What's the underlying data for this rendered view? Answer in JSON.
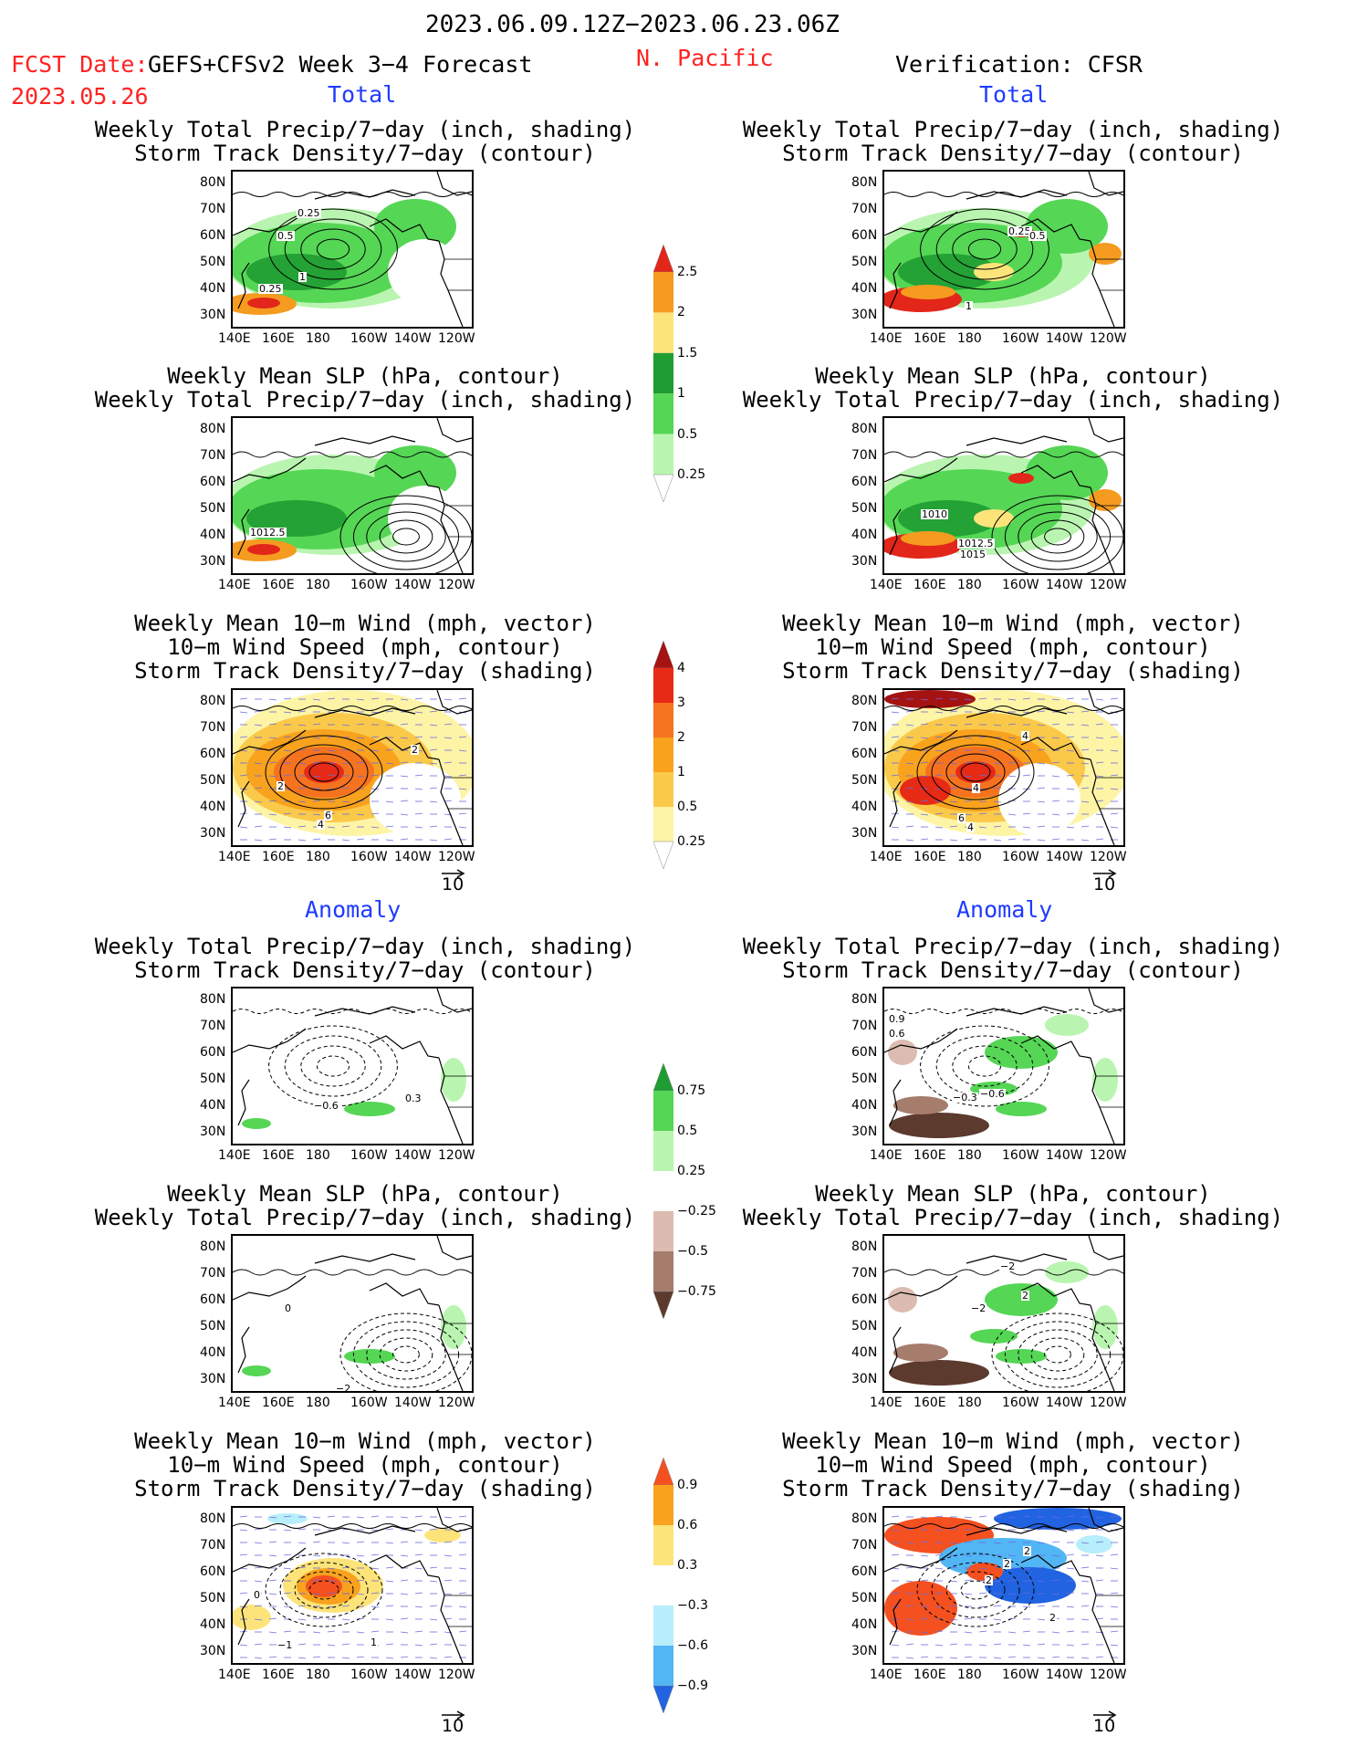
{
  "header": {
    "period": "2023.06.09.12Z−2023.06.23.06Z",
    "fcst_label": "FCST Date:",
    "fcst_model": "GEFS+CFSv2 Week 3−4 Forecast",
    "fcst_date": "2023.05.26",
    "region": "N. Pacific",
    "verification": "Verification: CFSR"
  },
  "sections": {
    "total": "Total",
    "anomaly": "Anomaly"
  },
  "titles": {
    "precip_storm": "Weekly Total Precip/7−day (inch, shading)\nStorm Track Density/7−day (contour)",
    "slp_precip": "Weekly Mean SLP (hPa, contour)\nWeekly Total Precip/7−day (inch, shading)",
    "wind": "Weekly Mean 10−m Wind (mph, vector)\n10−m Wind Speed (mph, contour)\nStorm Track Density/7−day (shading)"
  },
  "axes": {
    "lon_ticks": [
      "140E",
      "160E",
      "180",
      "160W",
      "140W",
      "120W"
    ],
    "lat_ticks": [
      "80N",
      "70N",
      "60N",
      "50N",
      "40N",
      "30N"
    ]
  },
  "vector_ref": "10",
  "colorbars": {
    "total_precip": {
      "labels": [
        "2.5",
        "2",
        "1.5",
        "1",
        "0.5",
        "0.25"
      ],
      "colors": [
        "#e2261a",
        "#f59b20",
        "#fde47a",
        "#1f9c32",
        "#55d655",
        "#b9f5b0"
      ]
    },
    "total_storm": {
      "labels": [
        "4",
        "3",
        "2",
        "1",
        "0.5",
        "0.25"
      ],
      "colors": [
        "#a51212",
        "#e62a15",
        "#f5731f",
        "#f8a21e",
        "#fbc94a",
        "#fdf4a6"
      ]
    },
    "anom_precip": {
      "labels": [
        "0.75",
        "0.5",
        "0.25",
        "−0.25",
        "−0.5",
        "−0.75"
      ],
      "colors": [
        "#1f9c32",
        "#55d655",
        "#b9f5b0",
        "#ffffff",
        "#dcbcb0",
        "#a67c6c",
        "#5c3a2e"
      ]
    },
    "anom_storm": {
      "labels": [
        "0.9",
        "0.6",
        "0.3",
        "−0.3",
        "−0.6",
        "−0.9"
      ],
      "colors": [
        "#f5501f",
        "#f8a21e",
        "#fde47a",
        "#ffffff",
        "#b7eefb",
        "#52b6f5",
        "#2163e0"
      ]
    },
    "total_precip_colors_top": [
      "#e2261a",
      "#f59b20",
      "#fde47a",
      "#1f9c32",
      "#55d655",
      "#b9f5b0"
    ]
  },
  "contour_labels": {
    "p1": [
      "0.25",
      "0.5",
      "1",
      "0.25"
    ],
    "p2": [
      "1012.5"
    ],
    "p3": [
      "2",
      "2",
      "6",
      "4"
    ],
    "p4": [
      "0.25",
      "0.5",
      "1"
    ],
    "p5": [
      "1010",
      "1012.5",
      "1015"
    ],
    "p6": [
      "4",
      "4",
      "6",
      "4"
    ],
    "a1": [
      "−0.6",
      "0.3"
    ],
    "a2": [
      "0",
      "−2"
    ],
    "a3": [
      "0",
      "−1",
      "1"
    ],
    "a4": [
      "0.9",
      "0.6",
      "−0.3",
      "−0.6"
    ],
    "a5": [
      "−2",
      "2",
      "−2"
    ],
    "a6": [
      "2",
      "2",
      "2",
      "2"
    ]
  },
  "chart_data": {
    "type": "heatmap",
    "title": "2023.06.09.12Z−2023.06.23.06Z N. Pacific",
    "panels": [
      {
        "id": "fcst-total-precip-storm",
        "column": "GEFS+CFSv2 Week 3−4 Forecast",
        "section": "Total",
        "shading": "Weekly Total Precip/7−day (inch)",
        "contour": "Storm Track Density/7−day",
        "contour_labels": [
          0.25,
          0.5,
          1,
          0.25
        ]
      },
      {
        "id": "fcst-total-slp-precip",
        "column": "GEFS+CFSv2 Week 3−4 Forecast",
        "section": "Total",
        "shading": "Weekly Total Precip/7−day (inch)",
        "contour": "Weekly Mean SLP (hPa)",
        "contour_labels": [
          1012.5
        ]
      },
      {
        "id": "fcst-total-wind",
        "column": "GEFS+CFSv2 Week 3−4 Forecast",
        "section": "Total",
        "shading": "Storm Track Density/7−day",
        "contour": "10−m Wind Speed (mph)",
        "vector": "Weekly Mean 10−m Wind (mph)",
        "contour_labels": [
          2,
          2,
          6,
          4
        ]
      },
      {
        "id": "verif-total-precip-storm",
        "column": "Verification: CFSR",
        "section": "Total",
        "shading": "Weekly Total Precip/7−day (inch)",
        "contour": "Storm Track Density/7−day",
        "contour_labels": [
          0.25,
          0.5,
          1
        ]
      },
      {
        "id": "verif-total-slp-precip",
        "column": "Verification: CFSR",
        "section": "Total",
        "shading": "Weekly Total Precip/7−day (inch)",
        "contour": "Weekly Mean SLP (hPa)",
        "contour_labels": [
          1010,
          1012.5,
          1015
        ]
      },
      {
        "id": "verif-total-wind",
        "column": "Verification: CFSR",
        "section": "Total",
        "shading": "Storm Track Density/7−day",
        "contour": "10−m Wind Speed (mph)",
        "vector": "Weekly Mean 10−m Wind (mph)",
        "contour_labels": [
          4,
          4,
          6,
          4
        ]
      },
      {
        "id": "fcst-anom-precip-storm",
        "column": "GEFS+CFSv2 Week 3−4 Forecast",
        "section": "Anomaly",
        "contour_labels": [
          -0.6,
          0.3
        ]
      },
      {
        "id": "fcst-anom-slp-precip",
        "column": "GEFS+CFSv2 Week 3−4 Forecast",
        "section": "Anomaly",
        "contour_labels": [
          0,
          -2
        ]
      },
      {
        "id": "fcst-anom-wind",
        "column": "GEFS+CFSv2 Week 3−4 Forecast",
        "section": "Anomaly",
        "contour_labels": [
          0,
          -1,
          1
        ]
      },
      {
        "id": "verif-anom-precip-storm",
        "column": "Verification: CFSR",
        "section": "Anomaly",
        "contour_labels": [
          0.9,
          0.6,
          -0.3,
          -0.6
        ]
      },
      {
        "id": "verif-anom-slp-precip",
        "column": "Verification: CFSR",
        "section": "Anomaly",
        "contour_labels": [
          -2,
          2,
          -2
        ]
      },
      {
        "id": "verif-anom-wind",
        "column": "Verification: CFSR",
        "section": "Anomaly",
        "contour_labels": [
          2,
          2,
          2,
          2
        ]
      }
    ],
    "x_ticks": [
      "140E",
      "160E",
      "180",
      "160W",
      "140W",
      "120W"
    ],
    "y_ticks": [
      "80N",
      "70N",
      "60N",
      "50N",
      "40N",
      "30N"
    ],
    "colorbar_levels": {
      "total_precip": [
        0.25,
        0.5,
        1,
        1.5,
        2,
        2.5
      ],
      "total_storm": [
        0.25,
        0.5,
        1,
        2,
        3,
        4
      ],
      "anom_precip": [
        -0.75,
        -0.5,
        -0.25,
        0.25,
        0.5,
        0.75
      ],
      "anom_storm": [
        -0.9,
        -0.6,
        -0.3,
        0.3,
        0.6,
        0.9
      ]
    },
    "vector_reference": 10
  }
}
